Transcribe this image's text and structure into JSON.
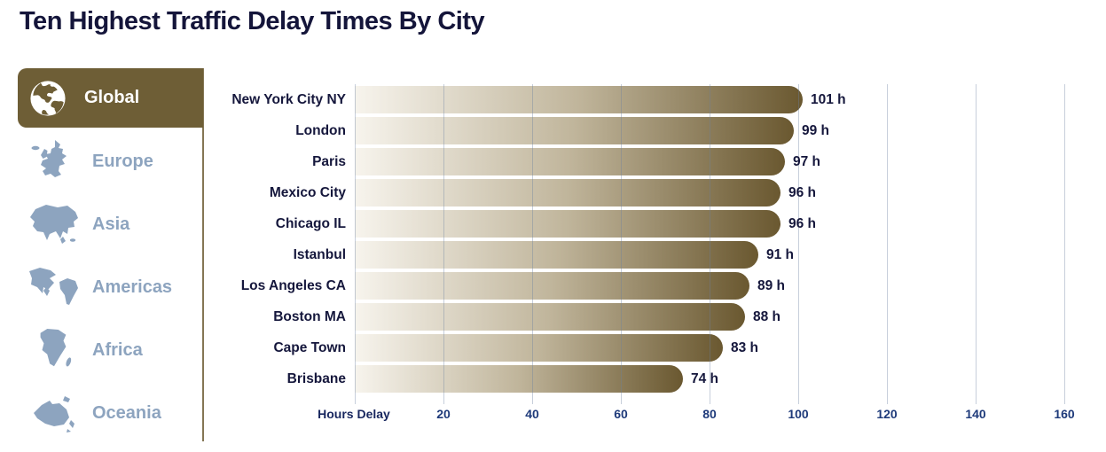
{
  "title": "Ten Highest Traffic Delay Times By City",
  "sidebar": {
    "items": [
      {
        "label": "Global",
        "icon": "globe-icon",
        "active": true
      },
      {
        "label": "Europe",
        "icon": "europe-map-icon",
        "active": false
      },
      {
        "label": "Asia",
        "icon": "asia-map-icon",
        "active": false
      },
      {
        "label": "Americas",
        "icon": "americas-map-icon",
        "active": false
      },
      {
        "label": "Africa",
        "icon": "africa-map-icon",
        "active": false
      },
      {
        "label": "Oceania",
        "icon": "oceania-map-icon",
        "active": false
      }
    ]
  },
  "chart_data": {
    "type": "bar",
    "orientation": "horizontal",
    "title": "Ten Highest Traffic Delay Times By City",
    "categories": [
      "New York City NY",
      "London",
      "Paris",
      "Mexico City",
      "Chicago IL",
      "Istanbul",
      "Los Angeles CA",
      "Boston MA",
      "Cape Town",
      "Brisbane"
    ],
    "values": [
      101,
      99,
      97,
      96,
      96,
      91,
      89,
      88,
      83,
      74
    ],
    "value_labels": [
      "101 h",
      "99 h",
      "97 h",
      "96 h",
      "96 h",
      "91 h",
      "89 h",
      "88 h",
      "83 h",
      "74 h"
    ],
    "xlabel": "Hours Delay",
    "xticks": [
      20,
      40,
      60,
      80,
      100,
      120,
      140,
      160
    ],
    "xlim": [
      0,
      160
    ],
    "grid": true,
    "legend": "none"
  },
  "colors": {
    "accent": "#6e5e36",
    "title_navy": "#14153a",
    "label_navy": "#15173c",
    "tick_blue": "#1e3a7a",
    "axis_title_navy": "#17265e",
    "region_blue": "#8da4bf",
    "bar_gradient_start": "#f7f4ed",
    "bar_gradient_mid": "#c0b59b",
    "bar_gradient_end": "#6a5830",
    "grid_line": "rgba(108,130,160,0.38)"
  }
}
